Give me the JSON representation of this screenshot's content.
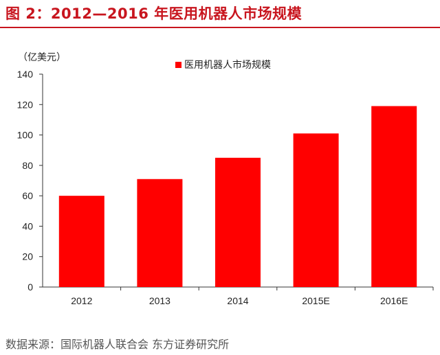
{
  "header": {
    "title": "图 2：2012—2016 年医用机器人市场规模"
  },
  "chart_data": {
    "type": "bar",
    "unit": "（亿美元）",
    "categories": [
      "2012",
      "2013",
      "2014",
      "2015E",
      "2016E"
    ],
    "series": [
      {
        "name": "医用机器人市场规模",
        "values": [
          60,
          71,
          85,
          101,
          119
        ],
        "color": "#ff0000"
      }
    ],
    "ylim": [
      0,
      140
    ],
    "yticks": [
      0,
      20,
      40,
      60,
      80,
      100,
      120,
      140
    ],
    "legend_position": "top-center",
    "grid": false
  },
  "footer": {
    "source": "数据来源：国际机器人联合会 东方证券研究所"
  }
}
